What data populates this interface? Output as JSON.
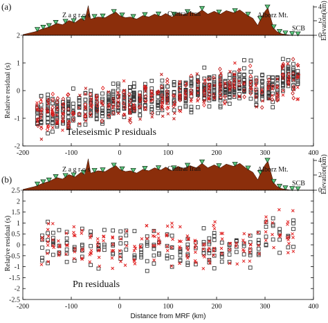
{
  "chart_data": [
    {
      "type": "scatter",
      "panel_label": "(a)",
      "inset_title": "Teleseismic P residuals",
      "ylabel": "Relative residual (s)",
      "xlabel": "",
      "xlim": [
        -200,
        400
      ],
      "ylim": [
        -2,
        2
      ],
      "x_ticks": [
        "-200",
        "-100",
        "0",
        "100",
        "200",
        "300",
        "400"
      ],
      "y_ticks": [
        "2",
        "1",
        "0",
        "-1",
        "-2"
      ],
      "elevation": {
        "ylabel": "Elevation(km)",
        "y_ticks": [
          "4",
          "2",
          "0"
        ],
        "regions": [
          "Z a g r o s",
          "Central Iran",
          "Alborz Mt.",
          "SCB"
        ],
        "fill_color": "#8b2e0b",
        "station_color": "#5cc87e"
      },
      "series": [
        {
          "marker": "square",
          "color": "#333333"
        },
        {
          "marker": "cross",
          "color": "#e02020"
        },
        {
          "marker": "diamond",
          "color": "#c01818"
        }
      ],
      "grid": false
    },
    {
      "type": "scatter",
      "panel_label": "(b)",
      "inset_title": "Pn residuals",
      "ylabel": "Relative residual (s)",
      "xlabel": "Distance from MRF (km)",
      "xlim": [
        -200,
        400
      ],
      "ylim": [
        -2.5,
        2.5
      ],
      "x_ticks": [
        "-200",
        "-100",
        "0",
        "100",
        "200",
        "300",
        "400"
      ],
      "y_ticks": [
        "2.5",
        "2",
        "1.5",
        "1",
        "0.5",
        "0",
        "-0.5",
        "-1",
        "-1.5",
        "-2",
        "-2.5"
      ],
      "elevation": {
        "ylabel": "Elevation(km)",
        "y_ticks": [
          "4",
          "2",
          "0"
        ],
        "regions": [
          "Z a g r o s",
          "Central Iran",
          "Alborz Mt.",
          "SCB"
        ],
        "fill_color": "#8b2e0b",
        "station_color": "#5cc87e"
      },
      "series": [
        {
          "marker": "square",
          "color": "#333333"
        },
        {
          "marker": "cross",
          "color": "#e02020"
        }
      ],
      "grid": false
    }
  ]
}
